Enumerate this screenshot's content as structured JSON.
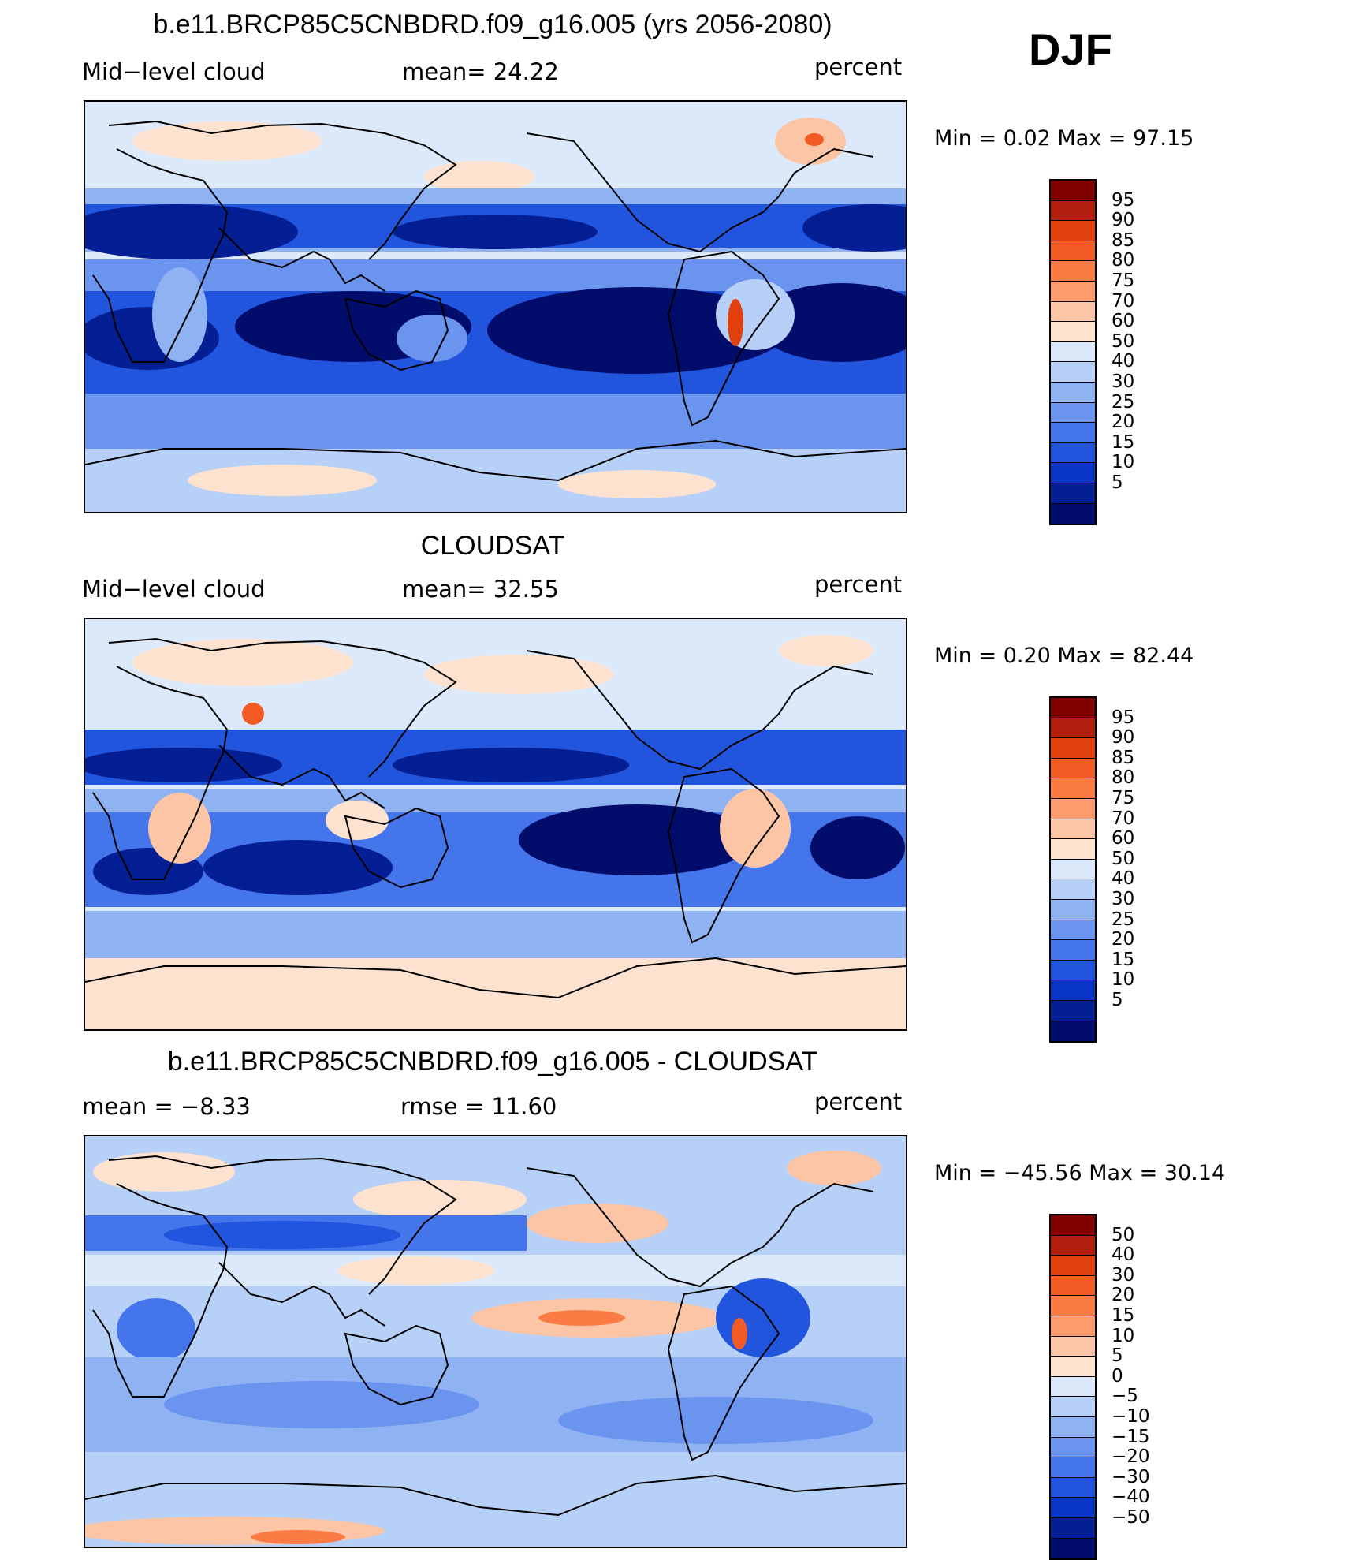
{
  "season": "DJF",
  "panels": [
    {
      "title": "b.e11.BRCP85C5CNBDRD.f09_g16.005 (yrs 2056-2080)",
      "left_label": "Mid−level cloud",
      "center_label": "mean=   24.22",
      "right_label": "percent",
      "minmax": "Min =    0.02  Max =   97.15",
      "colorbar": {
        "labels": [
          "95",
          "90",
          "85",
          "80",
          "75",
          "70",
          "60",
          "50",
          "40",
          "30",
          "25",
          "20",
          "15",
          "10",
          "5"
        ],
        "colors": [
          "#800000",
          "#b3200f",
          "#e0400c",
          "#f45a24",
          "#fb7b44",
          "#fc9c6e",
          "#fcc5a5",
          "#fde3cf",
          "#dbe9fb",
          "#b7d0f7",
          "#8fb2f3",
          "#6b94ee",
          "#4575ea",
          "#2155de",
          "#0a36c8",
          "#041e94",
          "#020c6a"
        ]
      }
    },
    {
      "title": "CLOUDSAT",
      "left_label": "Mid−level cloud",
      "center_label": "mean=   32.55",
      "right_label": "percent",
      "minmax": "Min =    0.20  Max =   82.44",
      "colorbar": {
        "labels": [
          "95",
          "90",
          "85",
          "80",
          "75",
          "70",
          "60",
          "50",
          "40",
          "30",
          "25",
          "20",
          "15",
          "10",
          "5"
        ],
        "colors": [
          "#800000",
          "#b3200f",
          "#e0400c",
          "#f45a24",
          "#fb7b44",
          "#fc9c6e",
          "#fcc5a5",
          "#fde3cf",
          "#dbe9fb",
          "#b7d0f7",
          "#8fb2f3",
          "#6b94ee",
          "#4575ea",
          "#2155de",
          "#0a36c8",
          "#041e94",
          "#020c6a"
        ]
      }
    },
    {
      "title": "b.e11.BRCP85C5CNBDRD.f09_g16.005 - CLOUDSAT",
      "left_label": "mean =   −8.33",
      "center_label": "rmse =   11.60",
      "right_label": "percent",
      "minmax": "Min = −45.56  Max =   30.14",
      "colorbar": {
        "labels": [
          "50",
          "40",
          "30",
          "20",
          "15",
          "10",
          "5",
          "0",
          "−5",
          "−10",
          "−15",
          "−20",
          "−30",
          "−40",
          "−50"
        ],
        "colors": [
          "#800000",
          "#b3200f",
          "#e0400c",
          "#f45a24",
          "#fb7b44",
          "#fc9c6e",
          "#fcc5a5",
          "#fde3cf",
          "#dbe9fb",
          "#b7d0f7",
          "#8fb2f3",
          "#6b94ee",
          "#4575ea",
          "#2155de",
          "#0a36c8",
          "#041e94",
          "#020c6a"
        ]
      }
    }
  ]
}
